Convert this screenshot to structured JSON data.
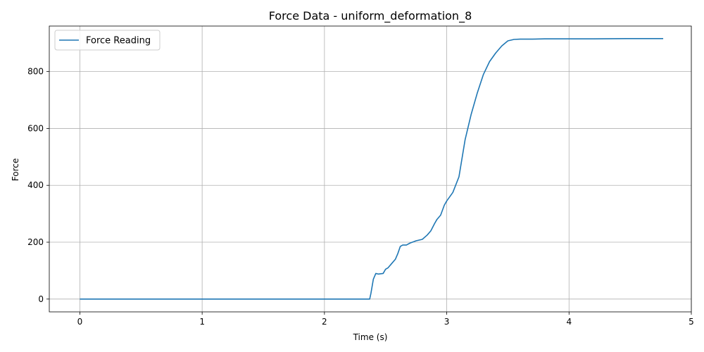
{
  "chart_data": {
    "type": "line",
    "title": "Force Data - uniform_deformation_8",
    "xlabel": "Time (s)",
    "ylabel": "Force",
    "xlim": [
      -0.25,
      5.0
    ],
    "ylim": [
      -45,
      960
    ],
    "xticks": [
      0,
      1,
      2,
      3,
      4,
      5
    ],
    "yticks": [
      0,
      200,
      400,
      600,
      800
    ],
    "grid": true,
    "legend_position": "upper-left",
    "color": "#1f77b4",
    "series": [
      {
        "name": "Force Reading",
        "x": [
          0,
          0.5,
          1.0,
          1.5,
          2.0,
          2.37,
          2.38,
          2.4,
          2.42,
          2.44,
          2.48,
          2.5,
          2.52,
          2.55,
          2.58,
          2.6,
          2.62,
          2.64,
          2.67,
          2.7,
          2.75,
          2.8,
          2.84,
          2.87,
          2.9,
          2.92,
          2.95,
          2.98,
          3.0,
          3.05,
          3.1,
          3.15,
          3.2,
          3.25,
          3.3,
          3.35,
          3.4,
          3.45,
          3.5,
          3.55,
          3.6,
          3.7,
          3.8,
          4.0,
          4.2,
          4.5,
          4.77
        ],
        "y": [
          0,
          0,
          0,
          0,
          0,
          0,
          20,
          70,
          90,
          88,
          90,
          105,
          110,
          125,
          140,
          160,
          185,
          190,
          190,
          197,
          205,
          210,
          225,
          240,
          265,
          280,
          295,
          330,
          345,
          375,
          430,
          560,
          650,
          725,
          790,
          835,
          865,
          890,
          908,
          913,
          914,
          914,
          915,
          915,
          915,
          916,
          916
        ]
      }
    ]
  }
}
